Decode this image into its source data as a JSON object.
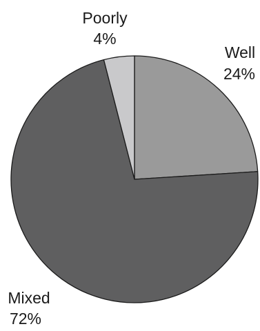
{
  "chart_data": {
    "type": "pie",
    "title": "",
    "slices": [
      {
        "label": "Well",
        "value": 24,
        "value_label": "24%",
        "color": "#9a9a9a"
      },
      {
        "label": "Mixed",
        "value": 72,
        "value_label": "72%",
        "color": "#5f5f60"
      },
      {
        "label": "Poorly",
        "value": 4,
        "value_label": "4%",
        "color": "#c9c9cb"
      }
    ],
    "start_angle_deg": 0,
    "direction": "clockwise",
    "slice_border_color": "#1a1a1a",
    "legend": "none"
  }
}
